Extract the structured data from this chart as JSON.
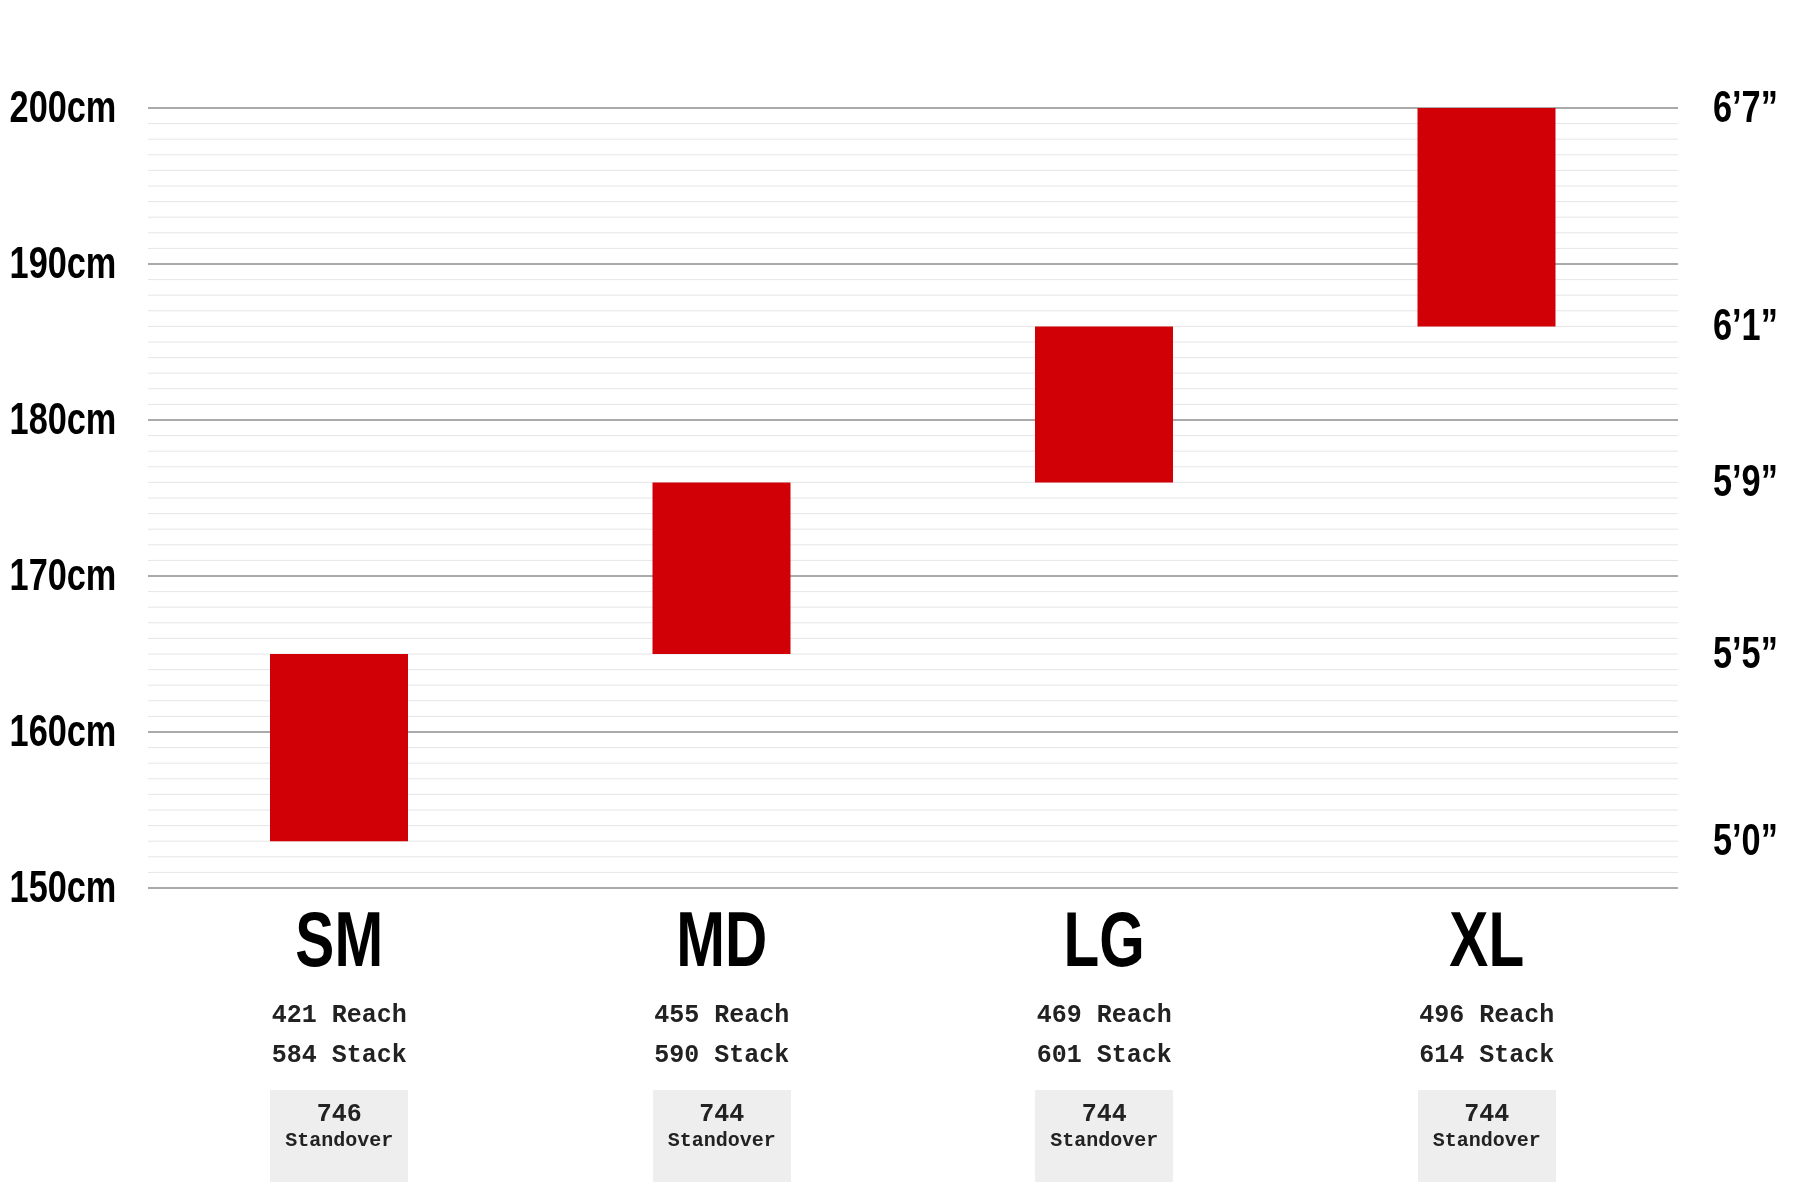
{
  "chart_data": {
    "type": "bar",
    "categories": [
      "SM",
      "MD",
      "LG",
      "XL"
    ],
    "base": [
      153,
      165,
      176,
      186
    ],
    "values": [
      12,
      11,
      10,
      14
    ],
    "color": "#d10007",
    "ylim": [
      150,
      200
    ],
    "yticks": [
      {
        "value": 150,
        "label": "150cm"
      },
      {
        "value": 151,
        "label": null
      },
      {
        "value": 152,
        "label": null
      },
      {
        "value": 153,
        "label": null
      },
      {
        "value": 154,
        "label": null
      },
      {
        "value": 155,
        "label": null
      },
      {
        "value": 156,
        "label": null
      },
      {
        "value": 157,
        "label": null
      },
      {
        "value": 158,
        "label": null
      },
      {
        "value": 159,
        "label": null
      },
      {
        "value": 160,
        "label": "160cm"
      },
      {
        "value": 161,
        "label": null
      },
      {
        "value": 162,
        "label": null
      },
      {
        "value": 163,
        "label": null
      },
      {
        "value": 164,
        "label": null
      },
      {
        "value": 165,
        "label": null
      },
      {
        "value": 166,
        "label": null
      },
      {
        "value": 167,
        "label": null
      },
      {
        "value": 168,
        "label": null
      },
      {
        "value": 169,
        "label": null
      },
      {
        "value": 170,
        "label": "170cm"
      },
      {
        "value": 171,
        "label": null
      },
      {
        "value": 172,
        "label": null
      },
      {
        "value": 173,
        "label": null
      },
      {
        "value": 174,
        "label": null
      },
      {
        "value": 175,
        "label": null
      },
      {
        "value": 176,
        "label": null
      },
      {
        "value": 177,
        "label": null
      },
      {
        "value": 178,
        "label": null
      },
      {
        "value": 179,
        "label": null
      },
      {
        "value": 180,
        "label": "180cm"
      },
      {
        "value": 181,
        "label": null
      },
      {
        "value": 182,
        "label": null
      },
      {
        "value": 183,
        "label": null
      },
      {
        "value": 184,
        "label": null
      },
      {
        "value": 185,
        "label": null
      },
      {
        "value": 186,
        "label": null
      },
      {
        "value": 187,
        "label": null
      },
      {
        "value": 188,
        "label": null
      },
      {
        "value": 189,
        "label": null
      },
      {
        "value": 190,
        "label": "190cm"
      },
      {
        "value": 191,
        "label": null
      },
      {
        "value": 192,
        "label": null
      },
      {
        "value": 193,
        "label": null
      },
      {
        "value": 194,
        "label": null
      },
      {
        "value": 195,
        "label": null
      },
      {
        "value": 196,
        "label": null
      },
      {
        "value": 197,
        "label": null
      },
      {
        "value": 198,
        "label": null
      },
      {
        "value": 199,
        "label": null
      },
      {
        "value": 200,
        "label": "200cm"
      }
    ],
    "grid": "y",
    "annotations": [
      "421 Reach",
      "584 Stack",
      "746 Standover",
      "455 Reach",
      "590 Stack",
      "744 Standover",
      "469 Reach",
      "601 Stack",
      "744 Standover",
      "496 Reach",
      "614 Stack",
      "744 Standover",
      "5’0”",
      "5’5”",
      "5’9”",
      "6’1”",
      "6’7”"
    ]
  }
}
